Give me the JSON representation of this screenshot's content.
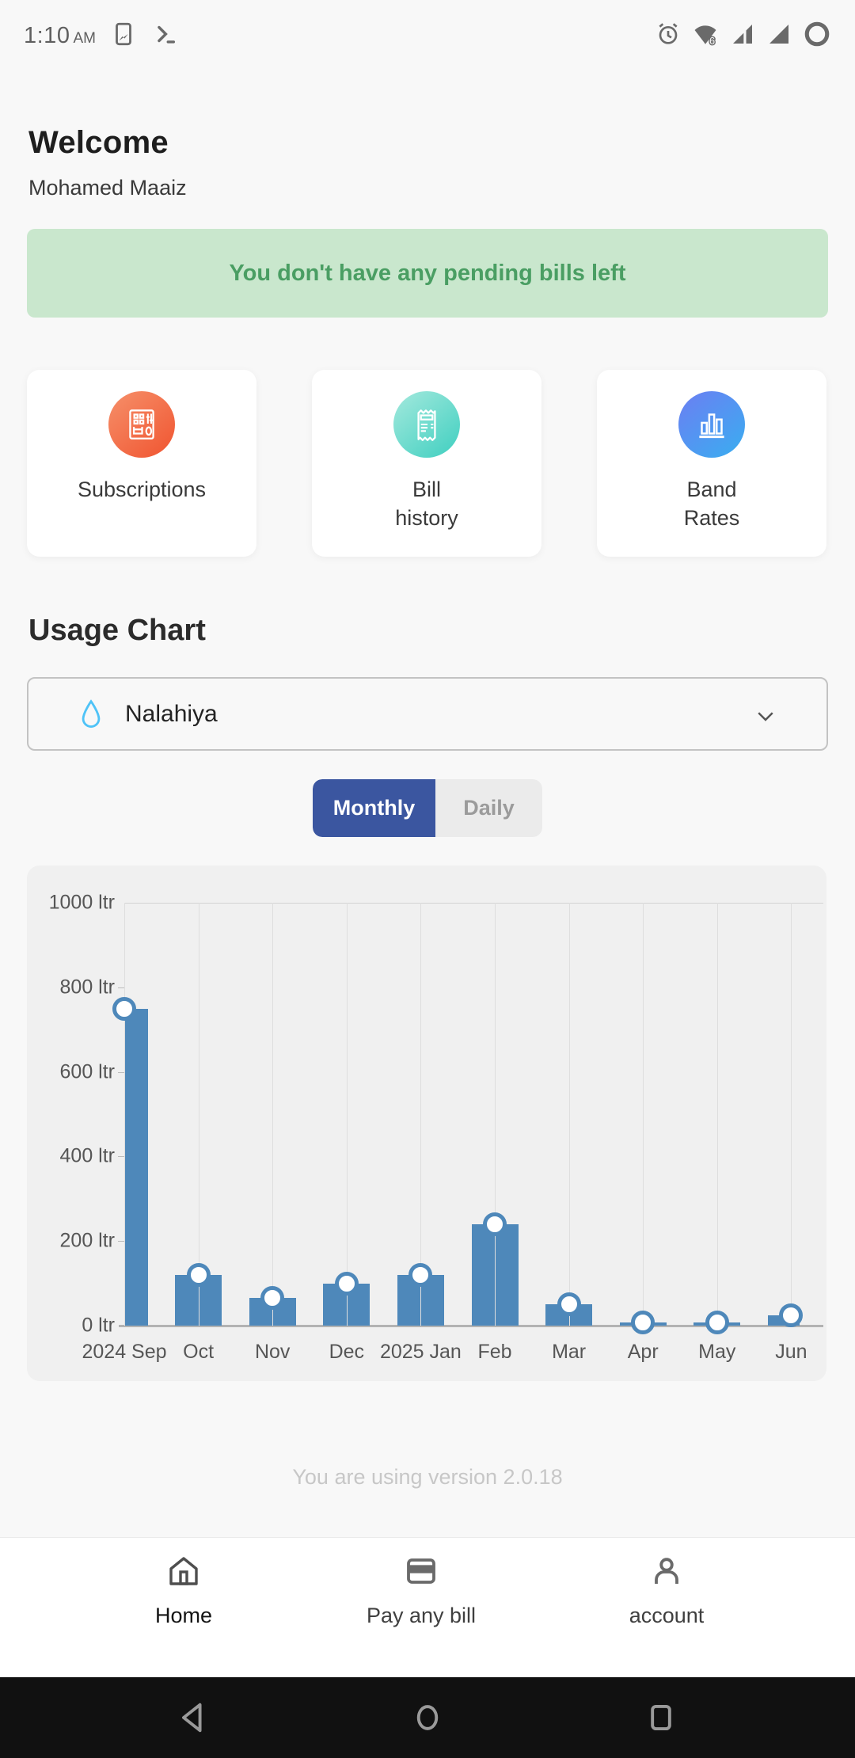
{
  "status_bar": {
    "time": "1:10",
    "meridiem": "AM",
    "left_icons": [
      "screenshot-icon",
      "terminal-icon"
    ],
    "right_icons": [
      "alarm-icon",
      "wifi6-icon",
      "signal-icon",
      "signal-icon",
      "battery-ring-icon"
    ]
  },
  "header": {
    "title": "Welcome",
    "subtitle": "Mohamed Maaiz"
  },
  "banner": {
    "text": "You don't have any pending bills left",
    "bg": "#c9e7cd",
    "color": "#4a9e63"
  },
  "quick_actions": [
    {
      "label": "Subscriptions",
      "icon": "meter-control-icon",
      "icon_bg": "orange-gradient"
    },
    {
      "label": "Bill\nhistory",
      "icon": "receipt-icon",
      "icon_bg": "teal-gradient"
    },
    {
      "label": "Band\nRates",
      "icon": "bar-chart-icon",
      "icon_bg": "blue-gradient"
    }
  ],
  "usage": {
    "title": "Usage Chart",
    "selector": {
      "value": "Nalahiya",
      "icon": "water-drop-icon",
      "icon_color": "#4fc3f7"
    },
    "tabs": [
      {
        "label": "Monthly",
        "active": true,
        "active_bg": "#3b56a0"
      },
      {
        "label": "Daily",
        "active": false
      }
    ]
  },
  "chart_data": {
    "type": "bar",
    "categories": [
      "2024 Sep",
      "Oct",
      "Nov",
      "Dec",
      "2025 Jan",
      "Feb",
      "Mar",
      "Apr",
      "May",
      "Jun"
    ],
    "values": [
      750,
      120,
      65,
      100,
      120,
      240,
      50,
      8,
      8,
      25
    ],
    "unit": "ltr",
    "title": "",
    "xlabel": "",
    "ylabel": "",
    "ylim": [
      0,
      1000
    ],
    "ytick_labels": [
      "0 ltr",
      "200 ltr",
      "400 ltr",
      "600 ltr",
      "800 ltr",
      "1000 ltr"
    ],
    "bar_color": "#4e88ba",
    "marker": "circle-outline-on-bar-top",
    "grid": "vertical-at-categories",
    "legend": "none"
  },
  "version_note": "You are using version 2.0.18",
  "bottom_nav": {
    "items": [
      {
        "label": "Home",
        "icon": "home-icon",
        "active": true
      },
      {
        "label": "Pay any bill",
        "icon": "card-icon",
        "active": false
      },
      {
        "label": "account",
        "icon": "person-icon",
        "active": false
      }
    ]
  },
  "android_nav": [
    "back",
    "home",
    "recents"
  ]
}
